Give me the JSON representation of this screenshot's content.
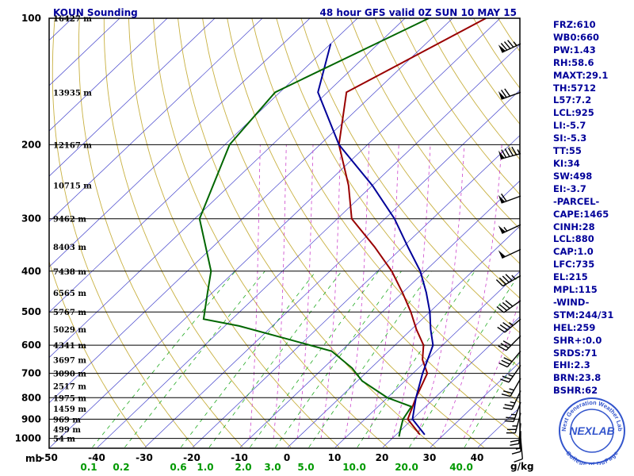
{
  "header": {
    "station": "KOUN Sounding",
    "valid": "48 hour GFS valid 0Z SUN 10 MAY 15"
  },
  "axes": {
    "pressure_unit": "mb",
    "mix_unit": "g/kg"
  },
  "chart_data": {
    "type": "line",
    "title": "KOUN Sounding",
    "subtitle": "48 hour GFS valid 0Z SUN 10 MAY 15",
    "x_axis": {
      "ticks": [
        -50,
        -40,
        -30,
        -20,
        -10,
        0,
        10,
        20,
        30,
        40
      ],
      "range": [
        -50,
        50
      ]
    },
    "y_axis": {
      "ticks": [
        100,
        200,
        300,
        400,
        500,
        600,
        700,
        800,
        900,
        1000
      ],
      "range": [
        100,
        1050
      ],
      "scale": "log",
      "unit": "mb"
    },
    "mixing_ratio_labels": [
      "0.1",
      "0.2",
      "0.6",
      "1.0",
      "2.0",
      "3.0",
      "5.0",
      "10.0",
      "20.0",
      "40.0"
    ],
    "height_labels": [
      {
        "p": 100,
        "label": "16427 m"
      },
      {
        "p": 150,
        "label": "13935 m"
      },
      {
        "p": 200,
        "label": "12167 m"
      },
      {
        "p": 250,
        "label": "10715 m"
      },
      {
        "p": 300,
        "label": "9462 m"
      },
      {
        "p": 350,
        "label": "8403 m"
      },
      {
        "p": 400,
        "label": "7438 m"
      },
      {
        "p": 450,
        "label": "6565 m"
      },
      {
        "p": 500,
        "label": "5767 m"
      },
      {
        "p": 550,
        "label": "5029 m"
      },
      {
        "p": 600,
        "label": "4341 m"
      },
      {
        "p": 650,
        "label": "3697 m"
      },
      {
        "p": 700,
        "label": "3090 m"
      },
      {
        "p": 750,
        "label": "2517 m"
      },
      {
        "p": 800,
        "label": "1975 m"
      },
      {
        "p": 850,
        "label": "1459 m"
      },
      {
        "p": 900,
        "label": "969 m"
      },
      {
        "p": 950,
        "label": "499 m"
      },
      {
        "p": 1000,
        "label": "54 m"
      }
    ],
    "series": [
      {
        "color": "#990000",
        "points": [
          [
            100,
            -53
          ],
          [
            150,
            -66
          ],
          [
            200,
            -56
          ],
          [
            250,
            -45
          ],
          [
            300,
            -37
          ],
          [
            350,
            -26
          ],
          [
            400,
            -17
          ],
          [
            450,
            -10
          ],
          [
            500,
            -4
          ],
          [
            550,
            1
          ],
          [
            600,
            6
          ],
          [
            650,
            9
          ],
          [
            700,
            13
          ],
          [
            800,
            16
          ],
          [
            900,
            19
          ],
          [
            980,
            25
          ]
        ]
      },
      {
        "color": "#000099",
        "points": [
          [
            115,
            -80
          ],
          [
            150,
            -72
          ],
          [
            200,
            -56
          ],
          [
            250,
            -40
          ],
          [
            300,
            -28
          ],
          [
            350,
            -19
          ],
          [
            400,
            -11
          ],
          [
            450,
            -5
          ],
          [
            500,
            0
          ],
          [
            550,
            4
          ],
          [
            600,
            8
          ],
          [
            700,
            12
          ],
          [
            800,
            16
          ],
          [
            900,
            20
          ],
          [
            980,
            26
          ]
        ]
      },
      {
        "color": "#006600",
        "points": [
          [
            100,
            -65
          ],
          [
            150,
            -81
          ],
          [
            200,
            -79
          ],
          [
            300,
            -69
          ],
          [
            400,
            -55
          ],
          [
            450,
            -51
          ],
          [
            520,
            -46
          ],
          [
            540,
            -37
          ],
          [
            580,
            -24
          ],
          [
            620,
            -12
          ],
          [
            680,
            -4
          ],
          [
            730,
            1
          ],
          [
            800,
            10
          ],
          [
            840,
            17
          ],
          [
            900,
            18
          ],
          [
            960,
            20
          ],
          [
            990,
            21
          ]
        ]
      }
    ],
    "wind_barbs": [
      {
        "p": 115,
        "dir": 245,
        "kt": 85
      },
      {
        "p": 150,
        "dir": 250,
        "kt": 70
      },
      {
        "p": 210,
        "dir": 255,
        "kt": 95
      },
      {
        "p": 265,
        "dir": 250,
        "kt": 60
      },
      {
        "p": 310,
        "dir": 245,
        "kt": 55
      },
      {
        "p": 355,
        "dir": 245,
        "kt": 50
      },
      {
        "p": 410,
        "dir": 240,
        "kt": 45
      },
      {
        "p": 470,
        "dir": 235,
        "kt": 40
      },
      {
        "p": 520,
        "dir": 230,
        "kt": 35
      },
      {
        "p": 570,
        "dir": 225,
        "kt": 30
      },
      {
        "p": 620,
        "dir": 220,
        "kt": 30
      },
      {
        "p": 670,
        "dir": 215,
        "kt": 25
      },
      {
        "p": 720,
        "dir": 210,
        "kt": 25
      },
      {
        "p": 770,
        "dir": 205,
        "kt": 25
      },
      {
        "p": 820,
        "dir": 200,
        "kt": 25
      },
      {
        "p": 870,
        "dir": 195,
        "kt": 25
      },
      {
        "p": 920,
        "dir": 185,
        "kt": 20
      },
      {
        "p": 960,
        "dir": 180,
        "kt": 15
      },
      {
        "p": 1000,
        "dir": 175,
        "kt": 10
      }
    ]
  },
  "indices": [
    "FRZ:610",
    "WB0:660",
    "PW:1.43",
    "RH:58.6",
    "MAXT:29.1",
    "TH:5712",
    "L57:7.2",
    "LCL:925",
    "LI:-5.7",
    "SI:-5.3",
    "TT:55",
    "KI:34",
    "SW:498",
    "EI:-3.7",
    "-PARCEL-",
    "CAPE:1465",
    "CINH:28",
    "LCL:880",
    "CAP:1.0",
    "LFC:735",
    "EL:215",
    "MPL:115",
    "-WIND-",
    "STM:244/31",
    "HEL:259",
    "SHR+:0.0",
    "SRDS:71",
    "EHI:2.3",
    "BRN:23.8",
    "BSHR:62"
  ],
  "logo": {
    "text": "NEXLAB",
    "ring_top": "Next Generation Weather Lab",
    "ring_bottom": "College of DuPage",
    "color": "#3355cc"
  }
}
